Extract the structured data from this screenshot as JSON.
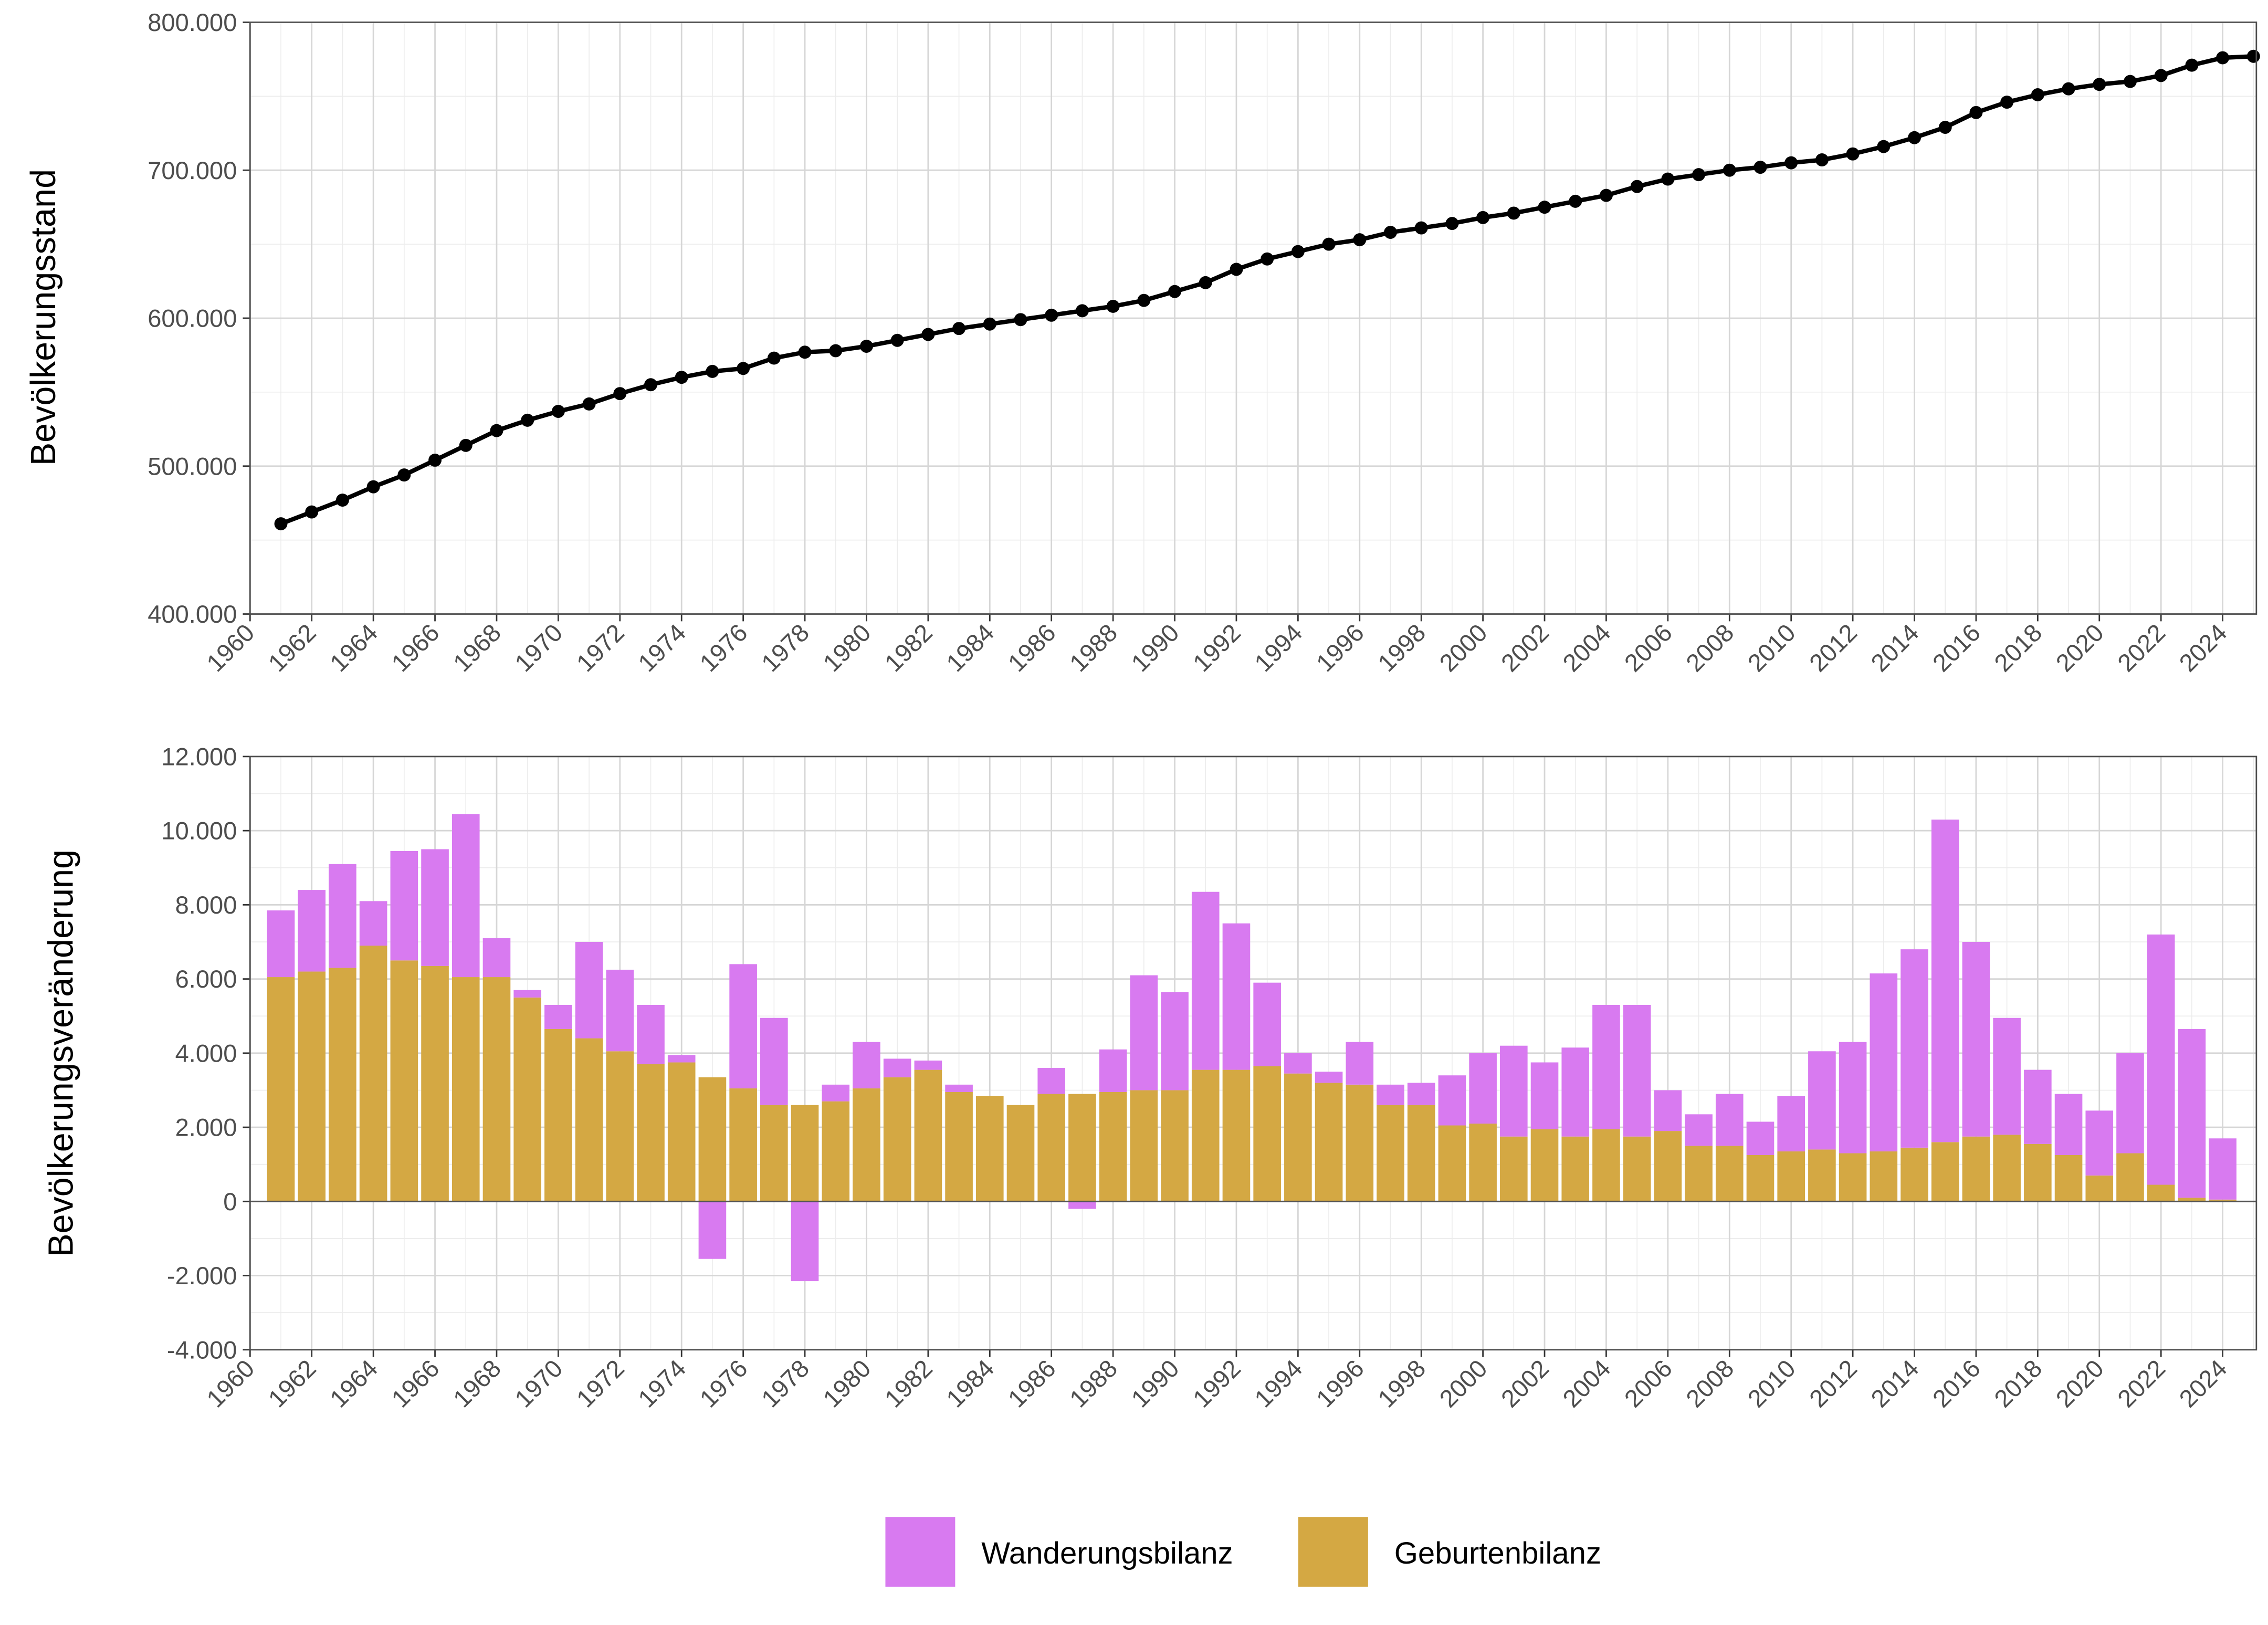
{
  "chart_data": [
    {
      "type": "line",
      "ylabel": "Bevölkerungsstand",
      "xlabel": "",
      "xlim": [
        1960,
        2025
      ],
      "ylim": [
        400000,
        800000
      ],
      "yticks": [
        "400.000",
        "500.000",
        "600.000",
        "700.000",
        "800.000"
      ],
      "ytick_values": [
        400000,
        500000,
        600000,
        700000,
        800000
      ],
      "grid": true,
      "color": "#000000",
      "x": [
        1961,
        1962,
        1963,
        1964,
        1965,
        1966,
        1967,
        1968,
        1969,
        1970,
        1971,
        1972,
        1973,
        1974,
        1975,
        1976,
        1977,
        1978,
        1979,
        1980,
        1981,
        1982,
        1983,
        1984,
        1985,
        1986,
        1987,
        1988,
        1989,
        1990,
        1991,
        1992,
        1993,
        1994,
        1995,
        1996,
        1997,
        1998,
        1999,
        2000,
        2001,
        2002,
        2003,
        2004,
        2005,
        2006,
        2007,
        2008,
        2009,
        2010,
        2011,
        2012,
        2013,
        2014,
        2015,
        2016,
        2017,
        2018,
        2019,
        2020,
        2021,
        2022,
        2023,
        2024,
        2025
      ],
      "y": [
        461000,
        469000,
        477000,
        486000,
        494000,
        504000,
        514000,
        524000,
        531000,
        537000,
        542000,
        549000,
        555000,
        560000,
        564000,
        566000,
        573000,
        577000,
        578000,
        581000,
        585000,
        589000,
        593000,
        596000,
        599000,
        602000,
        605000,
        608000,
        612000,
        618000,
        624000,
        633000,
        640000,
        645000,
        650000,
        653000,
        658000,
        661000,
        664000,
        668000,
        671000,
        675000,
        679000,
        683000,
        689000,
        694000,
        697000,
        700000,
        702000,
        705000,
        707000,
        711000,
        716000,
        722000,
        729000,
        739000,
        746000,
        751000,
        755000,
        758000,
        760000,
        764000,
        771000,
        776000,
        777000
      ]
    },
    {
      "type": "bar",
      "stacked": true,
      "ylabel": "Bevölkerungsveränderung",
      "xlabel": "",
      "xlim": [
        1960,
        2025
      ],
      "ylim": [
        -4000,
        12000
      ],
      "yticks": [
        "-4.000",
        "-2.000",
        "0",
        "2.000",
        "4.000",
        "6.000",
        "8.000",
        "10.000",
        "12.000"
      ],
      "ytick_values": [
        -4000,
        -2000,
        0,
        2000,
        4000,
        6000,
        8000,
        10000,
        12000
      ],
      "grid": true,
      "legend_position": "bottom",
      "x": [
        1961,
        1962,
        1963,
        1964,
        1965,
        1966,
        1967,
        1968,
        1969,
        1970,
        1971,
        1972,
        1973,
        1974,
        1975,
        1976,
        1977,
        1978,
        1979,
        1980,
        1981,
        1982,
        1983,
        1984,
        1985,
        1986,
        1987,
        1988,
        1989,
        1990,
        1991,
        1992,
        1993,
        1994,
        1995,
        1996,
        1997,
        1998,
        1999,
        2000,
        2001,
        2002,
        2003,
        2004,
        2005,
        2006,
        2007,
        2008,
        2009,
        2010,
        2011,
        2012,
        2013,
        2014,
        2015,
        2016,
        2017,
        2018,
        2019,
        2020,
        2021,
        2022,
        2023,
        2024
      ],
      "series": [
        {
          "name": "Wanderungsbilanz",
          "color": "#d87af0",
          "values": [
            1800,
            2200,
            2800,
            1200,
            2950,
            3150,
            4400,
            1050,
            200,
            650,
            2600,
            2200,
            1600,
            200,
            -1550,
            3350,
            2350,
            -2150,
            450,
            1250,
            500,
            250,
            200,
            0,
            0,
            700,
            -200,
            1150,
            3100,
            2650,
            4800,
            3950,
            2250,
            550,
            300,
            1150,
            550,
            600,
            1350,
            1900,
            2450,
            1800,
            2400,
            3350,
            3550,
            1100,
            850,
            1400,
            900,
            1500,
            2650,
            3000,
            4800,
            5350,
            8700,
            5250,
            3150,
            2000,
            1650,
            1750,
            2700,
            6750,
            4550,
            1650
          ]
        },
        {
          "name": "Geburtenbilanz",
          "color": "#d4a843",
          "values": [
            6050,
            6200,
            6300,
            6900,
            6500,
            6350,
            6050,
            6050,
            5500,
            4650,
            4400,
            4050,
            3700,
            3750,
            3350,
            3050,
            2600,
            2600,
            2700,
            3050,
            3350,
            3550,
            2950,
            2850,
            2600,
            2900,
            2900,
            2950,
            3000,
            3000,
            3550,
            3550,
            3650,
            3450,
            3200,
            3150,
            2600,
            2600,
            2050,
            2100,
            1750,
            1950,
            1750,
            1950,
            1750,
            1900,
            1500,
            1500,
            1250,
            1350,
            1400,
            1300,
            1350,
            1450,
            1600,
            1750,
            1800,
            1550,
            1250,
            700,
            1300,
            450,
            100,
            50
          ]
        }
      ]
    }
  ],
  "xticks": [
    "1960",
    "1962",
    "1964",
    "1966",
    "1968",
    "1970",
    "1972",
    "1974",
    "1976",
    "1978",
    "1980",
    "1982",
    "1984",
    "1986",
    "1988",
    "1990",
    "1992",
    "1994",
    "1996",
    "1998",
    "2000",
    "2002",
    "2004",
    "2006",
    "2008",
    "2010",
    "2012",
    "2014",
    "2016",
    "2018",
    "2020",
    "2022",
    "2024"
  ],
  "legend": [
    "Wanderungsbilanz",
    "Geburtenbilanz"
  ]
}
